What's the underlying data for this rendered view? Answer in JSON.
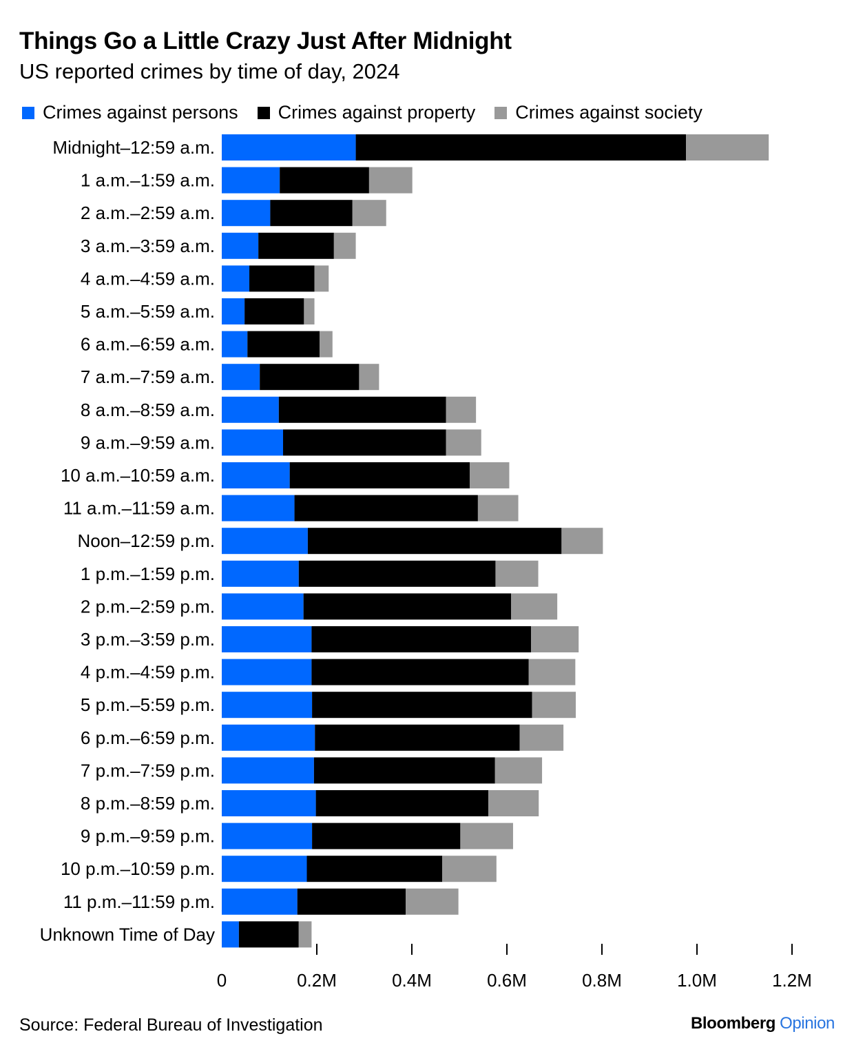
{
  "header": {
    "title": "Things Go a Little Crazy Just After Midnight",
    "subtitle": "US reported crimes by time of day, 2024"
  },
  "footer": {
    "source": "Source: Federal Bureau of Investigation",
    "logo_brand": "Bloomberg",
    "logo_section": "Opinion"
  },
  "colors": {
    "persons": "#0068ff",
    "property": "#000000",
    "society": "#999999",
    "logo_accent": "#2875e0"
  },
  "chart_data": {
    "type": "bar",
    "orientation": "horizontal",
    "stacked": true,
    "title": "Things Go a Little Crazy Just After Midnight",
    "subtitle": "US reported crimes by time of day, 2024",
    "xlabel": "",
    "ylabel": "",
    "xlim": [
      0,
      1200000
    ],
    "x_ticks": [
      0,
      200000,
      400000,
      600000,
      800000,
      1000000,
      1200000
    ],
    "x_tick_labels": [
      "0",
      "0.2M",
      "0.4M",
      "0.6M",
      "0.8M",
      "1.0M",
      "1.2M"
    ],
    "grid": false,
    "legend_position": "top-left",
    "categories": [
      "Midnight–12:59 a.m.",
      "1 a.m.–1:59 a.m.",
      "2 a.m.–2:59 a.m.",
      "3 a.m.–3:59 a.m.",
      "4 a.m.–4:59 a.m.",
      "5 a.m.–5:59 a.m.",
      "6 a.m.–6:59 a.m.",
      "7 a.m.–7:59 a.m.",
      "8 a.m.–8:59 a.m.",
      "9 a.m.–9:59 a.m.",
      "10 a.m.–10:59 a.m.",
      "11 a.m.–11:59 a.m.",
      "Noon–12:59 p.m.",
      "1 p.m.–1:59 p.m.",
      "2 p.m.–2:59 p.m.",
      "3 p.m.–3:59 p.m.",
      "4 p.m.–4:59 p.m.",
      "5 p.m.–5:59 p.m.",
      "6 p.m.–6:59 p.m.",
      "7 p.m.–7:59 p.m.",
      "8 p.m.–8:59 p.m.",
      "9 p.m.–9:59 p.m.",
      "10 p.m.–10:59 p.m.",
      "11 p.m.–11:59 p.m.",
      "Unknown Time of Day"
    ],
    "series": [
      {
        "name": "Crimes against persons",
        "color": "#0068ff",
        "values": [
          282000,
          122000,
          102000,
          77000,
          58000,
          48000,
          54000,
          80000,
          120000,
          129000,
          143000,
          153000,
          181000,
          162000,
          172000,
          189000,
          189000,
          190000,
          196000,
          194000,
          198000,
          190000,
          179000,
          159000,
          36000
        ]
      },
      {
        "name": "Crimes against property",
        "color": "#000000",
        "values": [
          695000,
          188000,
          173000,
          159000,
          137000,
          125000,
          152000,
          209000,
          352000,
          343000,
          379000,
          386000,
          534000,
          414000,
          437000,
          462000,
          457000,
          463000,
          431000,
          381000,
          363000,
          312000,
          285000,
          228000,
          126000
        ]
      },
      {
        "name": "Crimes against society",
        "color": "#999999",
        "values": [
          174000,
          91000,
          71000,
          46000,
          30000,
          22000,
          27000,
          42000,
          63000,
          74000,
          83000,
          85000,
          87000,
          90000,
          97000,
          100000,
          98000,
          92000,
          92000,
          99000,
          106000,
          111000,
          114000,
          111000,
          27000
        ]
      }
    ]
  }
}
